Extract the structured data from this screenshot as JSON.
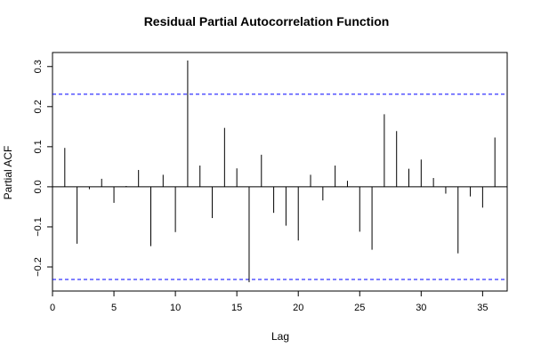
{
  "chart_data": {
    "type": "bar",
    "title": "Residual Partial Autocorrelation Function",
    "xlabel": "Lag",
    "ylabel": "Partial ACF",
    "xlim": [
      0,
      37
    ],
    "ylim": [
      -0.26,
      0.335
    ],
    "x_ticks": [
      0,
      5,
      10,
      15,
      20,
      25,
      30,
      35
    ],
    "y_ticks": [
      -0.2,
      -0.1,
      0.0,
      0.1,
      0.2,
      0.3
    ],
    "y_tick_labels": [
      "−0.2",
      "−0.1",
      "0.0",
      "0.1",
      "0.2",
      "0.3"
    ],
    "confidence_bound": 0.231,
    "zero_line": 0,
    "colors": {
      "spike": "#000000",
      "bound": "#0000ff",
      "box": "#000000"
    },
    "lags": [
      1,
      2,
      3,
      4,
      5,
      6,
      7,
      8,
      9,
      10,
      11,
      12,
      13,
      14,
      15,
      16,
      17,
      18,
      19,
      20,
      21,
      22,
      23,
      24,
      25,
      26,
      27,
      28,
      29,
      30,
      31,
      32,
      33,
      34,
      35,
      36
    ],
    "values": [
      0.097,
      -0.142,
      -0.006,
      0.02,
      -0.04,
      0.002,
      0.042,
      -0.148,
      0.03,
      -0.113,
      0.315,
      0.053,
      -0.078,
      0.147,
      0.046,
      -0.238,
      0.08,
      -0.065,
      -0.097,
      -0.134,
      0.03,
      -0.034,
      0.053,
      0.015,
      -0.112,
      -0.157,
      0.181,
      0.139,
      0.045,
      0.068,
      0.022,
      -0.017,
      -0.166,
      -0.024,
      -0.052,
      0.123
    ]
  }
}
